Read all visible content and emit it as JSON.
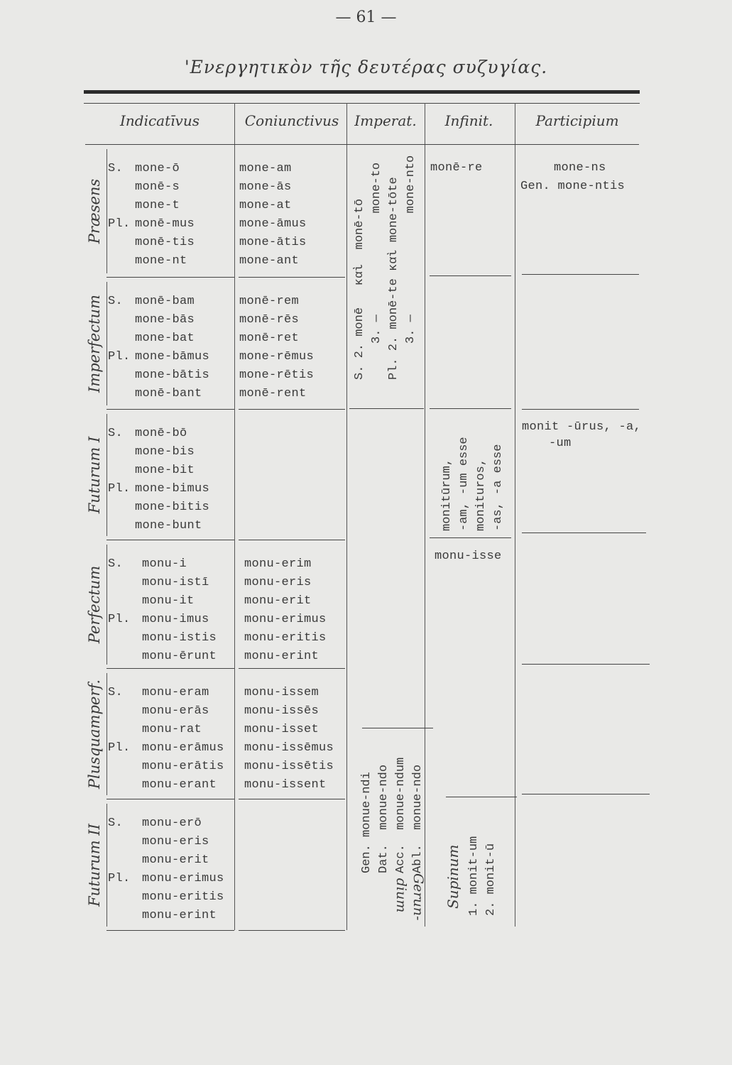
{
  "page_number": "— 61 —",
  "title": "'Ενεργητικὸν τῆς δευτέρας συζυγίας.",
  "headers": [
    "Indicatīvus",
    "Coniunctivus",
    "Imperat.",
    "Infinit.",
    "Participium"
  ],
  "number_labels": {
    "singular": "S.",
    "plural": "Pl."
  },
  "rows": [
    {
      "tense": "Præsens",
      "indicative": [
        "mone-ō",
        "monē-s",
        "mone-t",
        "monē-mus",
        "monē-tis",
        "mone-nt"
      ],
      "subjunctive": [
        "mone-am",
        "mone-ās",
        "mone-at",
        "mone-āmus",
        "mone-ātis",
        "mone-ant"
      ]
    },
    {
      "tense": "Imperfectum",
      "indicative": [
        "monē-bam",
        "mone-bās",
        "mone-bat",
        "mone-bāmus",
        "mone-bātis",
        "monē-bant"
      ],
      "subjunctive": [
        "monē-rem",
        "monē-rēs",
        "monē-ret",
        "mone-rēmus",
        "mone-rētis",
        "monē-rent"
      ]
    },
    {
      "tense": "Futurum I",
      "indicative": [
        "monē-bō",
        "mone-bis",
        "mone-bit",
        "mone-bimus",
        "mone-bitis",
        "mone-bunt"
      ],
      "subjunctive": []
    },
    {
      "tense": "Perfectum",
      "indicative": [
        "monu-i",
        "monu-istī",
        "monu-it",
        "monu-imus",
        "monu-istis",
        "monu-ērunt"
      ],
      "subjunctive": [
        "monu-erim",
        "monu-eris",
        "monu-erit",
        "monu-erimus",
        "monu-eritis",
        "monu-erint"
      ]
    },
    {
      "tense": "Plusquamperf.",
      "indicative": [
        "monu-eram",
        "monu-erās",
        "monu-rat",
        "monu-erāmus",
        "monu-erātis",
        "monu-erant"
      ],
      "subjunctive": [
        "monu-issem",
        "monu-issēs",
        "monu-isset",
        "monu-issēmus",
        "monu-issētis",
        "monu-issent"
      ]
    },
    {
      "tense": "Futurum II",
      "indicative": [
        "monu-erō",
        "monu-eris",
        "monu-erit",
        "monu-erimus",
        "monu-eritis",
        "monu-erint"
      ],
      "subjunctive": []
    }
  ],
  "imperative": [
    "S. 2. monē   καὶ  monē-tō",
    "     3. —              mone-to",
    "Pl. 2. monē-te καὶ mone-tōte",
    "     3. —              mone-nto"
  ],
  "infinitive": {
    "present": "monē-re",
    "future": [
      "monitūrum,",
      "-am, -um esse",
      "monituros,",
      "-as, -a esse"
    ],
    "perfect": "monu-isse"
  },
  "participle": {
    "present": [
      "mone-ns",
      "Gen. mone-ntis"
    ],
    "future": [
      "monit -ūrus, -a,",
      "-um"
    ]
  },
  "gerund": {
    "label": [
      "Gerun-",
      "dium"
    ],
    "forms": [
      "Gen. monue-ndi",
      "Dat.  monue-ndo",
      "Acc.  monue-ndum",
      "Abl.  monue-ndo"
    ]
  },
  "supine": {
    "label": "Supinum",
    "forms": [
      "1. monit-um",
      "2. monit-ū"
    ]
  }
}
